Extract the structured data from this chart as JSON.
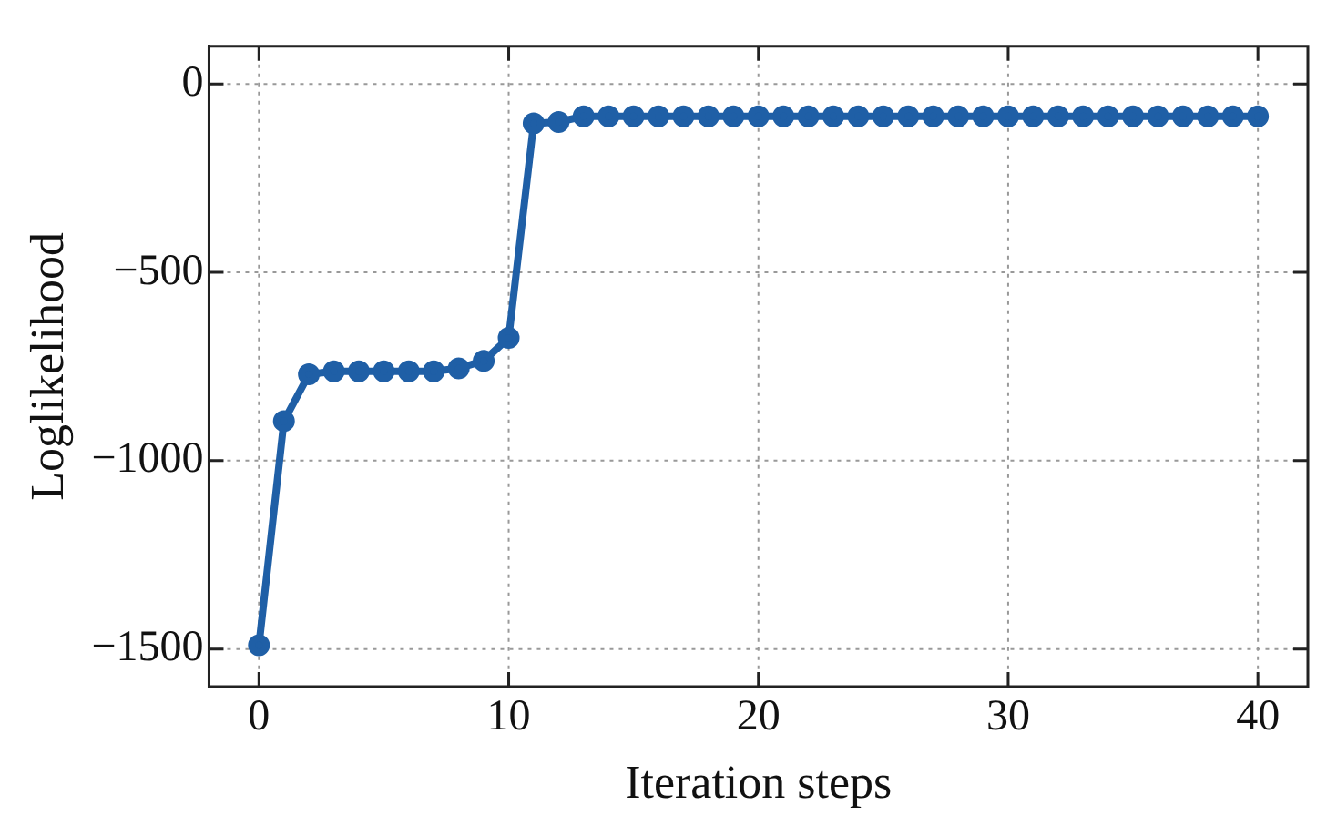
{
  "chart_data": {
    "type": "line",
    "xlabel": "Iteration steps",
    "ylabel": "Loglikelihood",
    "x": [
      0,
      1,
      2,
      3,
      4,
      5,
      6,
      7,
      8,
      9,
      10,
      11,
      12,
      13,
      14,
      15,
      16,
      17,
      18,
      19,
      20,
      21,
      22,
      23,
      24,
      25,
      26,
      27,
      28,
      29,
      30,
      31,
      32,
      33,
      34,
      35,
      36,
      37,
      38,
      39,
      40
    ],
    "series": [
      {
        "color": "#1f5fa6",
        "values": [
          -1490,
          -895,
          -771,
          -763,
          -763,
          -763,
          -763,
          -763,
          -755,
          -735,
          -674,
          -105,
          -101,
          -86,
          -86,
          -86,
          -86,
          -86,
          -86,
          -86,
          -86,
          -86,
          -86,
          -86,
          -86,
          -86,
          -86,
          -86,
          -86,
          -86,
          -86,
          -86,
          -86,
          -86,
          -86,
          -86,
          -86,
          -86,
          -86,
          -86,
          -86
        ]
      }
    ],
    "xlim": [
      -2,
      42
    ],
    "ylim": [
      -1600,
      100
    ],
    "xticks": [
      0,
      10,
      20,
      30,
      40
    ],
    "yticks": [
      -1500,
      -1000,
      -500,
      0
    ],
    "grid": true,
    "marker": "circle",
    "line_style": "solid",
    "legend": false
  }
}
